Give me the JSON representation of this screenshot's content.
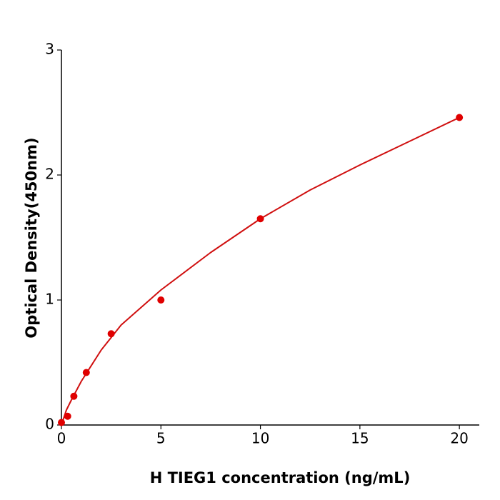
{
  "chart_data": {
    "type": "scatter",
    "x_label": "H  TIEG1 concentration (ng/mL)",
    "y_label": "Optical Density(450nm)",
    "xlim": [
      0,
      21
    ],
    "ylim": [
      0,
      3
    ],
    "xticks": [
      0,
      5,
      10,
      15,
      20
    ],
    "yticks": [
      0,
      1,
      2,
      3
    ],
    "series": [
      {
        "kind": "points",
        "color": "#e00000",
        "x": [
          0,
          0.3125,
          0.625,
          1.25,
          2.5,
          5,
          10,
          20
        ],
        "values": [
          0.02,
          0.07,
          0.23,
          0.42,
          0.73,
          1.0,
          1.65,
          2.46
        ]
      },
      {
        "kind": "fit",
        "color": "#d01010",
        "x": [
          0,
          0.25,
          0.5,
          1,
          2,
          3,
          5,
          7.5,
          10,
          12.5,
          15,
          17.5,
          20
        ],
        "values": [
          0,
          0.12,
          0.2,
          0.35,
          0.6,
          0.8,
          1.08,
          1.38,
          1.65,
          1.88,
          2.08,
          2.27,
          2.46
        ]
      }
    ]
  }
}
